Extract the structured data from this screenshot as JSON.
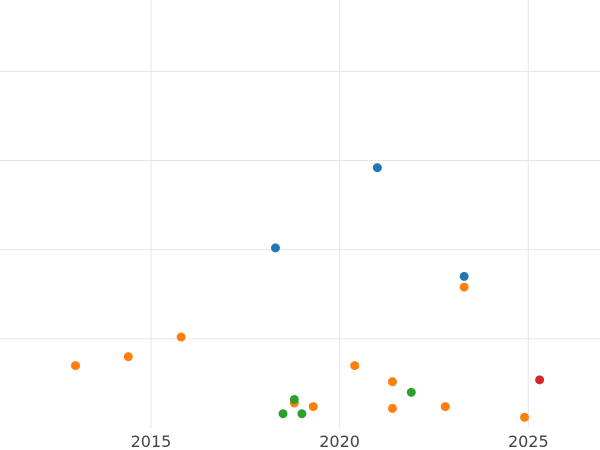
{
  "chart_data": {
    "type": "scatter",
    "title": "",
    "xlabel": "",
    "ylabel": "",
    "xlim": [
      2011,
      2026.9
    ],
    "ylim": [
      0,
      24
    ],
    "grid": true,
    "x_ticks": [
      2015,
      2020,
      2025
    ],
    "x_tick_labels": [
      "2015",
      "2020",
      "2025"
    ],
    "y_gridlines": [
      5,
      10,
      15,
      20
    ],
    "series": [
      {
        "color": "#1f77b4",
        "points": [
          {
            "x": 2018.3,
            "y": 10.1
          },
          {
            "x": 2021.0,
            "y": 14.6
          },
          {
            "x": 2023.3,
            "y": 8.5
          }
        ]
      },
      {
        "color": "#ff7f0e",
        "points": [
          {
            "x": 2013.0,
            "y": 3.5
          },
          {
            "x": 2014.4,
            "y": 4.0
          },
          {
            "x": 2015.8,
            "y": 5.1
          },
          {
            "x": 2018.8,
            "y": 1.4
          },
          {
            "x": 2019.3,
            "y": 1.2
          },
          {
            "x": 2020.4,
            "y": 3.5
          },
          {
            "x": 2021.4,
            "y": 2.6
          },
          {
            "x": 2021.4,
            "y": 1.1
          },
          {
            "x": 2022.8,
            "y": 1.2
          },
          {
            "x": 2023.3,
            "y": 7.9
          },
          {
            "x": 2024.9,
            "y": 0.6
          }
        ]
      },
      {
        "color": "#2ca02c",
        "points": [
          {
            "x": 2018.5,
            "y": 0.8
          },
          {
            "x": 2018.8,
            "y": 1.6
          },
          {
            "x": 2019.0,
            "y": 0.8
          },
          {
            "x": 2021.9,
            "y": 2.0
          }
        ]
      },
      {
        "color": "#d62728",
        "points": [
          {
            "x": 2025.3,
            "y": 2.7
          }
        ]
      }
    ]
  }
}
